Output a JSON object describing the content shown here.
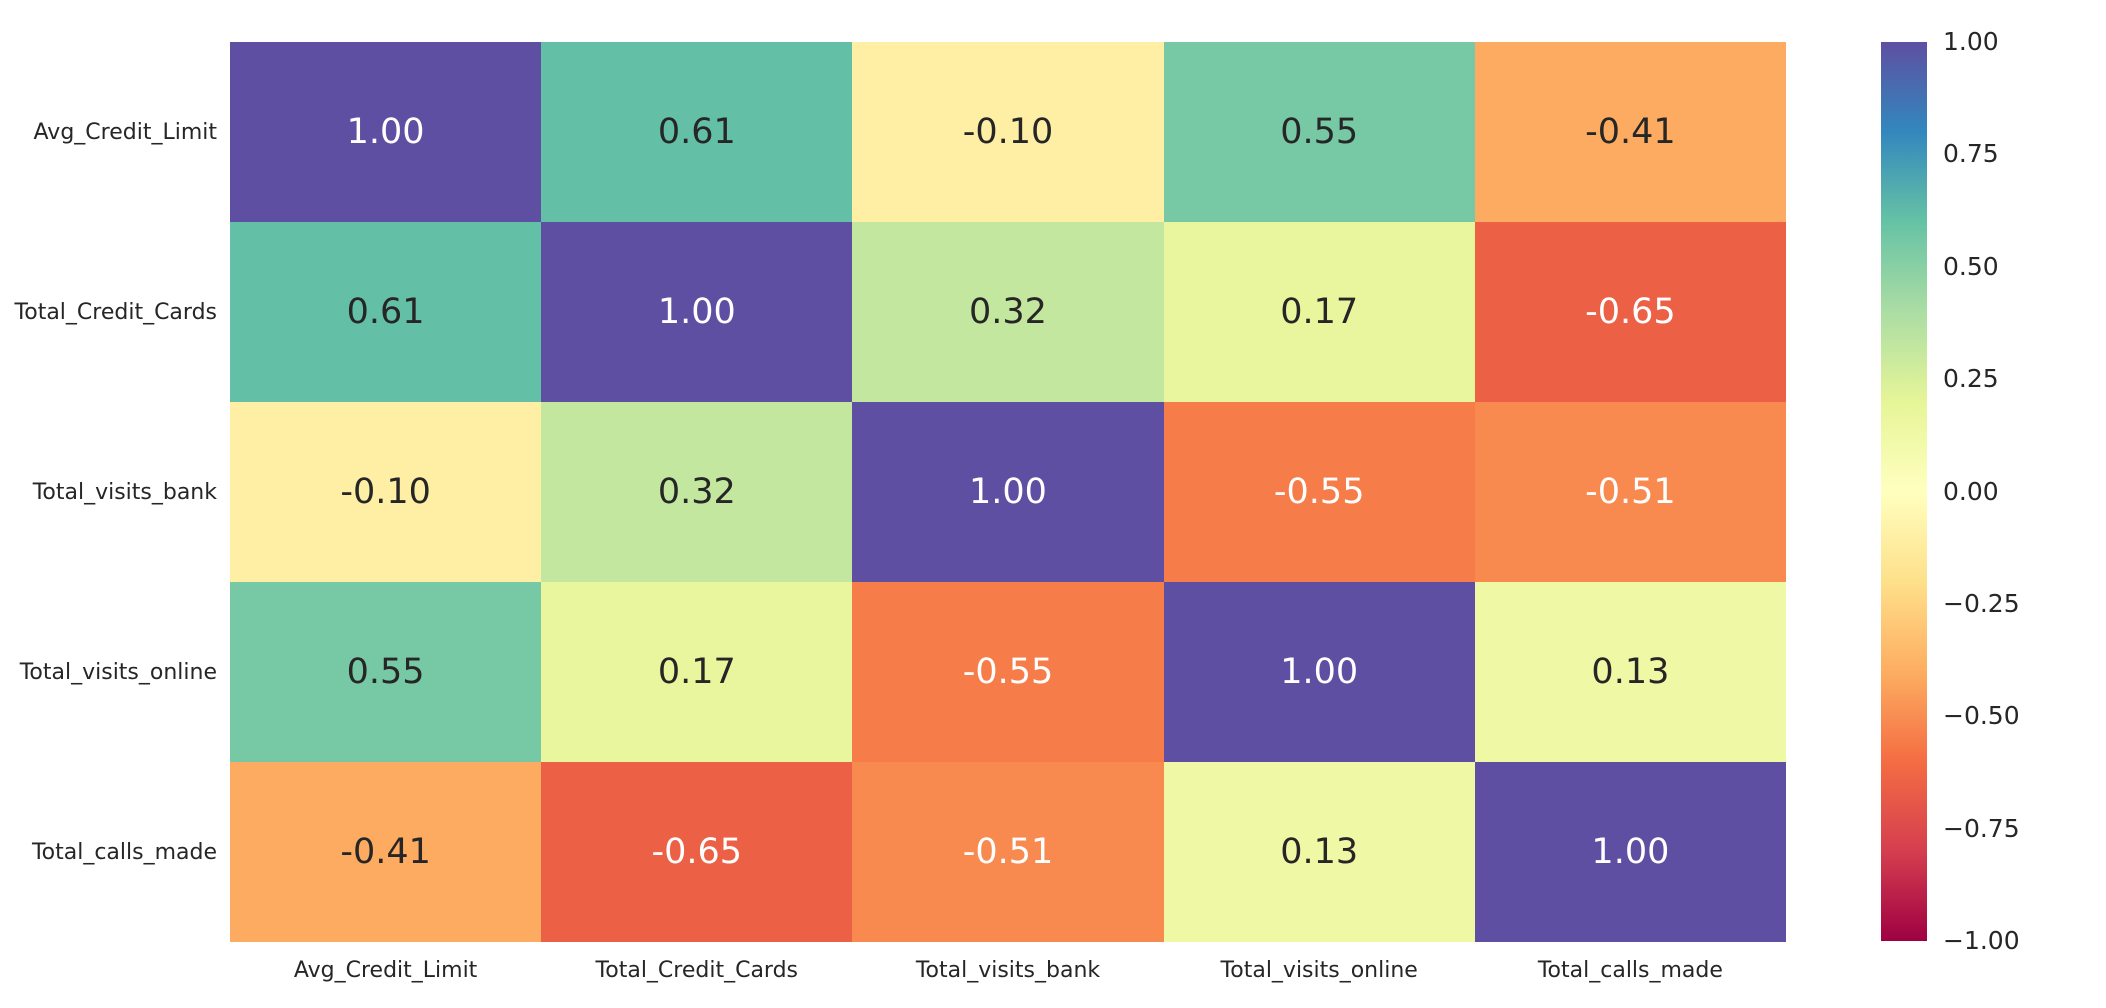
{
  "colors": {
    "background": "#ffffff",
    "label_text": "#262626",
    "annot_dark": "#262626",
    "annot_light": "#ffffff"
  },
  "chart_data": {
    "type": "heatmap",
    "title": "",
    "xlabel": "",
    "ylabel": "",
    "grid": false,
    "colormap": "Spectral",
    "vmin": -1.0,
    "vmax": 1.0,
    "categories": [
      "Avg_Credit_Limit",
      "Total_Credit_Cards",
      "Total_visits_bank",
      "Total_visits_online",
      "Total_calls_made"
    ],
    "matrix": [
      [
        1.0,
        0.61,
        -0.1,
        0.55,
        -0.41
      ],
      [
        0.61,
        1.0,
        0.32,
        0.17,
        -0.65
      ],
      [
        -0.1,
        0.32,
        1.0,
        -0.55,
        -0.51
      ],
      [
        0.55,
        0.17,
        -0.55,
        1.0,
        0.13
      ],
      [
        -0.41,
        -0.65,
        -0.51,
        0.13,
        1.0
      ]
    ],
    "annotations": [
      [
        "1.00",
        "0.61",
        "-0.10",
        "0.55",
        "-0.41"
      ],
      [
        "0.61",
        "1.00",
        "0.32",
        "0.17",
        "-0.65"
      ],
      [
        "-0.10",
        "0.32",
        "1.00",
        "-0.55",
        "-0.51"
      ],
      [
        "0.55",
        "0.17",
        "-0.55",
        "1.00",
        "0.13"
      ],
      [
        "-0.41",
        "-0.65",
        "-0.51",
        "0.13",
        "1.00"
      ]
    ],
    "cell_colors": [
      [
        "#5e4fa2",
        "#63bfa6",
        "#feefa5",
        "#77c9a5",
        "#fdab60"
      ],
      [
        "#63bfa6",
        "#5e4fa2",
        "#c3e79f",
        "#eaf69e",
        "#ec6146"
      ],
      [
        "#feefa5",
        "#c3e79f",
        "#5e4fa2",
        "#f67d4a",
        "#f88a50"
      ],
      [
        "#77c9a5",
        "#eaf69e",
        "#f67d4a",
        "#5e4fa2",
        "#eff8a5"
      ],
      [
        "#fdab60",
        "#ec6146",
        "#f88a50",
        "#eff8a5",
        "#5e4fa2"
      ]
    ],
    "cell_text_colors": [
      [
        "#ffffff",
        "#262626",
        "#262626",
        "#262626",
        "#262626"
      ],
      [
        "#262626",
        "#ffffff",
        "#262626",
        "#262626",
        "#ffffff"
      ],
      [
        "#262626",
        "#262626",
        "#ffffff",
        "#ffffff",
        "#ffffff"
      ],
      [
        "#262626",
        "#262626",
        "#ffffff",
        "#ffffff",
        "#262626"
      ],
      [
        "#262626",
        "#ffffff",
        "#ffffff",
        "#262626",
        "#ffffff"
      ]
    ],
    "colorbar": {
      "position": "right",
      "ticks": [
        {
          "label": "1.00",
          "value": 1.0
        },
        {
          "label": "0.75",
          "value": 0.75
        },
        {
          "label": "0.50",
          "value": 0.5
        },
        {
          "label": "0.25",
          "value": 0.25
        },
        {
          "label": "0.00",
          "value": 0.0
        },
        {
          "label": "−0.25",
          "value": -0.25
        },
        {
          "label": "−0.50",
          "value": -0.5
        },
        {
          "label": "−0.75",
          "value": -0.75
        },
        {
          "label": "−1.00",
          "value": -1.0
        }
      ],
      "gradient_stops": [
        {
          "pos": 0,
          "color": "#5e4fa2"
        },
        {
          "pos": 10,
          "color": "#3288bd"
        },
        {
          "pos": 20,
          "color": "#66c2a5"
        },
        {
          "pos": 30,
          "color": "#abdda4"
        },
        {
          "pos": 40,
          "color": "#e6f598"
        },
        {
          "pos": 50,
          "color": "#ffffbf"
        },
        {
          "pos": 60,
          "color": "#fee08b"
        },
        {
          "pos": 70,
          "color": "#fdae61"
        },
        {
          "pos": 80,
          "color": "#f46d43"
        },
        {
          "pos": 90,
          "color": "#d53e4f"
        },
        {
          "pos": 100,
          "color": "#9e0142"
        }
      ]
    }
  }
}
